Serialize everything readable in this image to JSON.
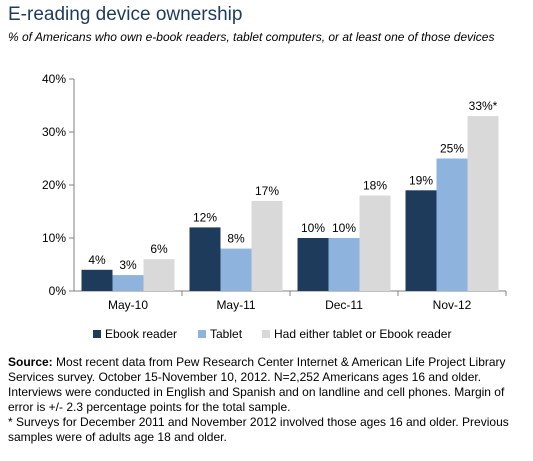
{
  "header": {
    "title": "E-reading device ownership",
    "subtitle": "% of Americans who own e-book readers, tablet computers, or  at least one of those devices"
  },
  "chart_data": {
    "type": "bar",
    "categories": [
      "May-10",
      "May-11",
      "Dec-11",
      "Nov-12"
    ],
    "series": [
      {
        "name": "Ebook reader",
        "color": "#1f3b5c",
        "values": [
          4,
          12,
          10,
          19
        ],
        "labels": [
          "4%",
          "12%",
          "10%",
          "19%"
        ]
      },
      {
        "name": "Tablet",
        "color": "#8eb4de",
        "values": [
          3,
          8,
          10,
          25
        ],
        "labels": [
          "3%",
          "8%",
          "10%",
          "25%"
        ]
      },
      {
        "name": "Had either tablet or Ebook reader",
        "color": "#d9d9d9",
        "values": [
          6,
          17,
          18,
          33
        ],
        "labels": [
          "6%",
          "17%",
          "18%",
          "33%*"
        ]
      }
    ],
    "ylim": [
      0,
      40
    ],
    "yticks": [
      "0%",
      "10%",
      "20%",
      "30%",
      "40%"
    ],
    "xlabel": "",
    "ylabel": "",
    "grid": false,
    "legend": "bottom"
  },
  "footnote": {
    "source_label": "Source:",
    "source_text": " Most recent data from Pew Research Center Internet & American Life Project Library Services survey. October 15-November 10, 2012. N=2,252 Americans ages 16 and older. Interviews were conducted in English and Spanish and on landline and cell phones. Margin of error is +/- 2.3 percentage points for the total sample.",
    "note": "* Surveys for December 2011 and November 2012 involved those ages 16 and older. Previous samples were of adults age 18 and older."
  }
}
